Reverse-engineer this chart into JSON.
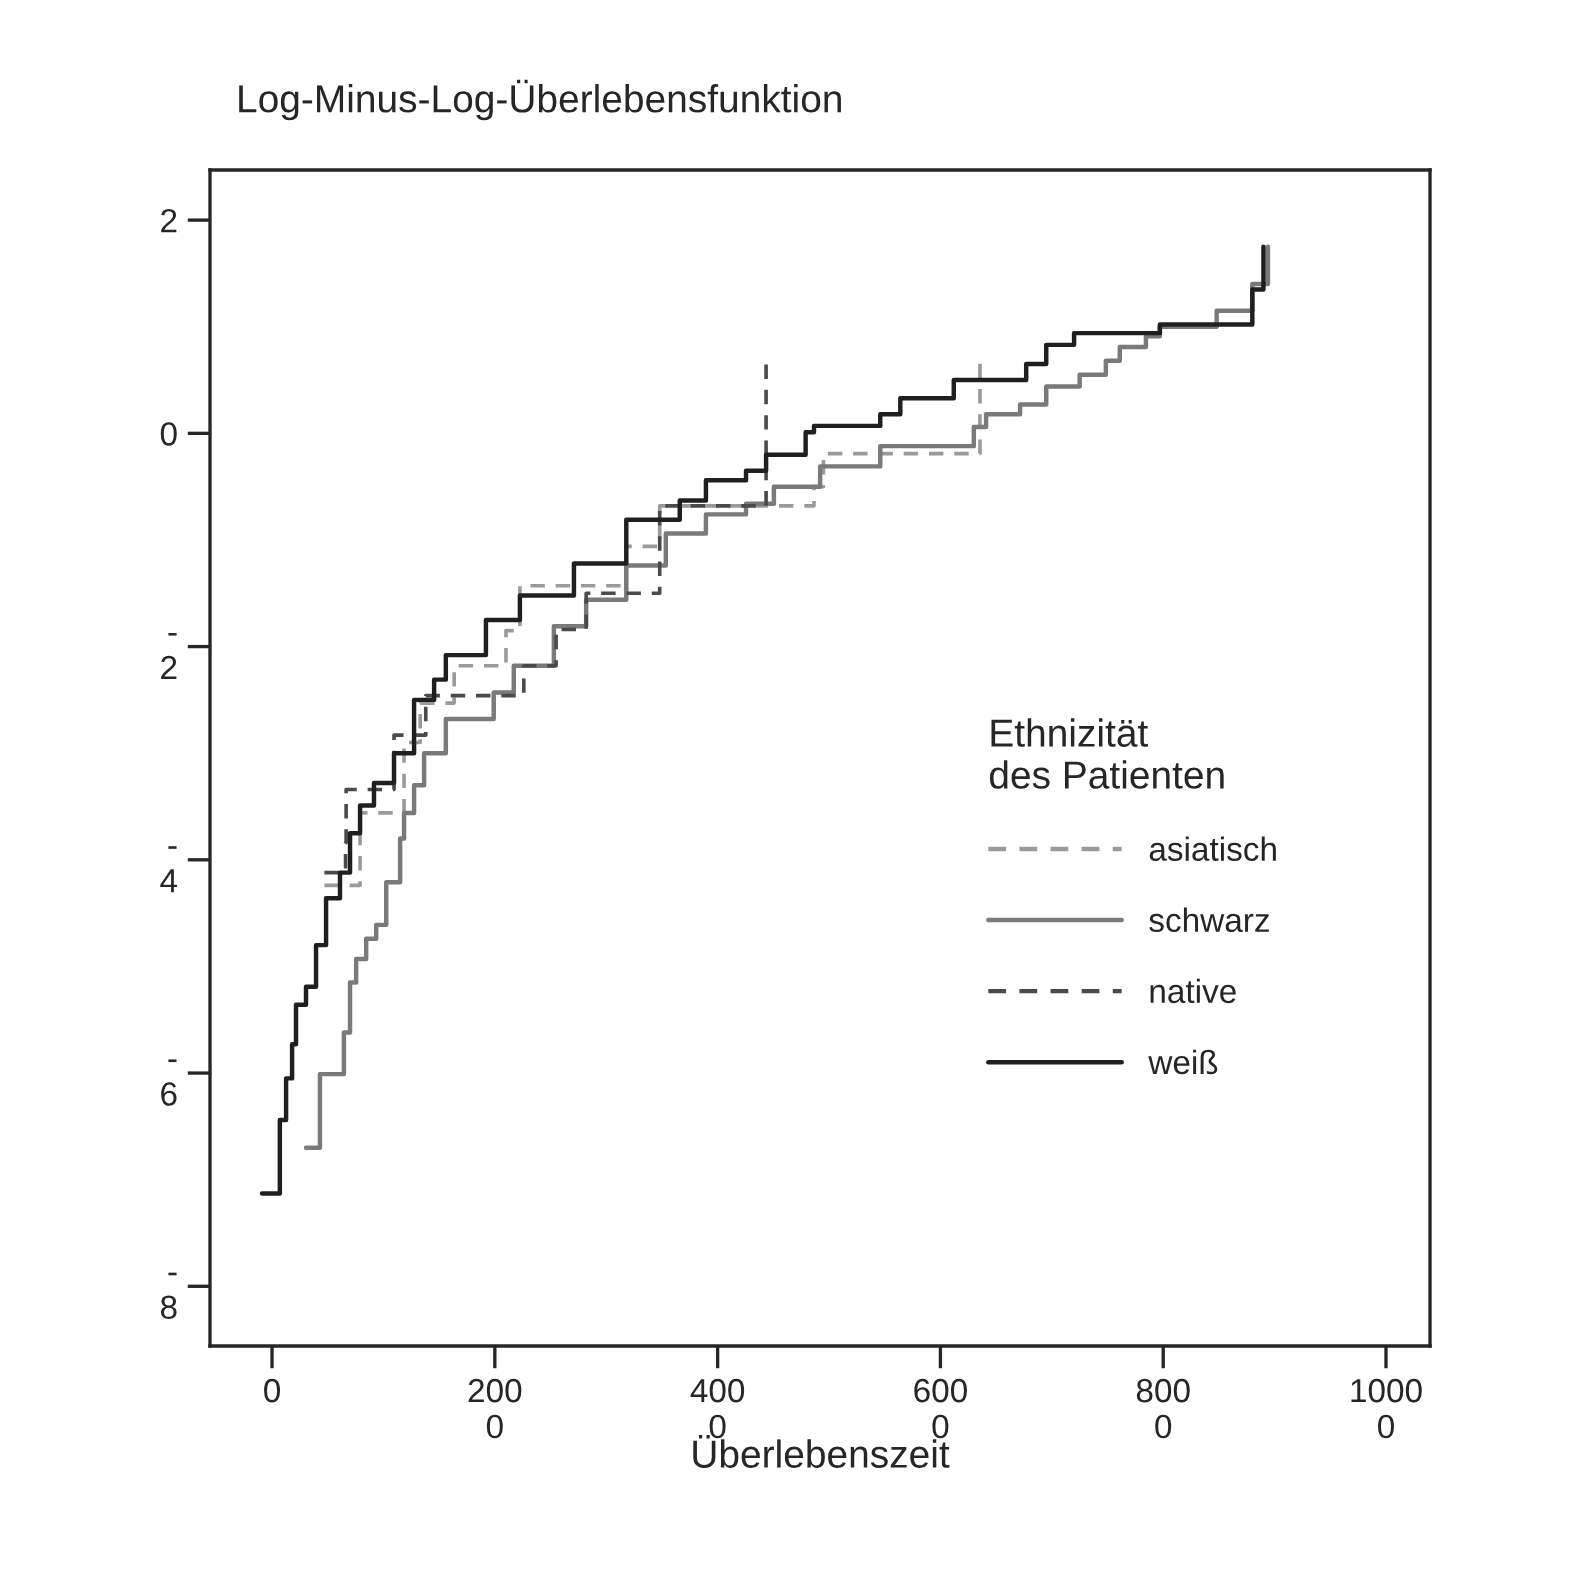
{
  "chart_data": {
    "type": "line",
    "title": "Log-Minus-Log-Überlebensfunktion",
    "xlabel": "Überlebenszeit",
    "legend_title": "Ethnizität\ndes Patienten",
    "legend": "lower right",
    "grid": false,
    "marker": "none",
    "xlim": [
      -557,
      10395
    ],
    "ylim": [
      -8.56,
      2.47
    ],
    "xticks": [
      0,
      2000,
      4000,
      6000,
      8000,
      10000
    ],
    "yticks": [
      2,
      0,
      -2,
      -4,
      -6,
      -8
    ],
    "series": [
      {
        "name": "asiatisch",
        "color": "#9a9a9a",
        "line_style": "dashed",
        "x": [
          470,
          790,
          790,
          1185,
          1185,
          1330,
          1330,
          1635,
          1635,
          2100,
          2100,
          2225,
          2225,
          3180,
          3180,
          3480,
          3480,
          4865,
          4865,
          4950,
          4950,
          6355,
          6355
        ],
        "values": [
          -4.24,
          -4.24,
          -3.56,
          -3.56,
          -2.9,
          -2.9,
          -2.53,
          -2.53,
          -2.18,
          -2.18,
          -1.85,
          -1.85,
          -1.43,
          -1.43,
          -1.06,
          -1.06,
          -0.68,
          -0.68,
          -0.5,
          -0.5,
          -0.19,
          -0.19,
          0.72
        ]
      },
      {
        "name": "schwarz",
        "color": "#7a7a7a",
        "line_style": "solid",
        "x": [
          305,
          430,
          430,
          645,
          645,
          700,
          700,
          755,
          755,
          845,
          845,
          935,
          935,
          1025,
          1025,
          1150,
          1150,
          1185,
          1185,
          1275,
          1275,
          1365,
          1365,
          1560,
          1560,
          1990,
          1990,
          2170,
          2170,
          2530,
          2530,
          2820,
          2820,
          3180,
          3180,
          3535,
          3535,
          3895,
          3895,
          4255,
          4255,
          4505,
          4505,
          4920,
          4920,
          5460,
          5460,
          6300,
          6300,
          6410,
          6410,
          6715,
          6715,
          6950,
          6950,
          7250,
          7250,
          7485,
          7485,
          7610,
          7610,
          7845,
          7845,
          7970,
          7970,
          8480,
          8480,
          8800,
          8800,
          8940,
          8940
        ],
        "values": [
          -6.7,
          -6.7,
          -6.01,
          -6.01,
          -5.62,
          -5.62,
          -5.15,
          -5.15,
          -4.93,
          -4.93,
          -4.74,
          -4.74,
          -4.61,
          -4.61,
          -4.21,
          -4.21,
          -3.8,
          -3.8,
          -3.56,
          -3.56,
          -3.3,
          -3.3,
          -3.0,
          -3.0,
          -2.68,
          -2.68,
          -2.43,
          -2.43,
          -2.18,
          -2.18,
          -1.81,
          -1.81,
          -1.56,
          -1.56,
          -1.24,
          -1.24,
          -0.94,
          -0.94,
          -0.76,
          -0.76,
          -0.66,
          -0.66,
          -0.5,
          -0.5,
          -0.31,
          -0.31,
          -0.12,
          -0.12,
          0.06,
          0.06,
          0.18,
          0.18,
          0.27,
          0.27,
          0.44,
          0.44,
          0.55,
          0.55,
          0.68,
          0.68,
          0.81,
          0.81,
          0.91,
          0.91,
          1.0,
          1.0,
          1.15,
          1.15,
          1.4,
          1.4,
          1.75
        ]
      },
      {
        "name": "native",
        "color": "#4a4a4a",
        "line_style": "dashed",
        "x": [
          470,
          660,
          660,
          665,
          665,
          1095,
          1095,
          1380,
          1380,
          2260,
          2260,
          2550,
          2550,
          2820,
          2820,
          3480,
          3480,
          4435,
          4435
        ],
        "values": [
          -4.12,
          -4.12,
          -3.84,
          -3.84,
          -3.34,
          -3.34,
          -2.83,
          -2.83,
          -2.46,
          -2.46,
          -2.18,
          -2.18,
          -1.84,
          -1.84,
          -1.5,
          -1.5,
          -0.68,
          -0.68,
          0.65
        ]
      },
      {
        "name": "weiß",
        "color": "#1f1f1f",
        "line_style": "solid",
        "x": [
          -90,
          70,
          70,
          126,
          126,
          180,
          180,
          215,
          215,
          305,
          305,
          395,
          395,
          485,
          485,
          610,
          610,
          700,
          700,
          790,
          790,
          915,
          915,
          1095,
          1095,
          1275,
          1275,
          1455,
          1455,
          1560,
          1560,
          1920,
          1920,
          2225,
          2225,
          2710,
          2710,
          3180,
          3180,
          3660,
          3660,
          3895,
          3895,
          4255,
          4255,
          4435,
          4435,
          4790,
          4790,
          4865,
          4865,
          5460,
          5460,
          5640,
          5640,
          6120,
          6120,
          6770,
          6770,
          6950,
          6950,
          7200,
          7200,
          7970,
          7970,
          8800,
          8800,
          8900,
          8900
        ],
        "values": [
          -7.13,
          -7.13,
          -6.44,
          -6.44,
          -6.05,
          -6.05,
          -5.73,
          -5.73,
          -5.36,
          -5.36,
          -5.19,
          -5.19,
          -4.8,
          -4.8,
          -4.36,
          -4.36,
          -4.12,
          -4.12,
          -3.75,
          -3.75,
          -3.49,
          -3.49,
          -3.28,
          -3.28,
          -3.0,
          -3.0,
          -2.5,
          -2.5,
          -2.31,
          -2.31,
          -2.08,
          -2.08,
          -1.75,
          -1.75,
          -1.52,
          -1.52,
          -1.22,
          -1.22,
          -0.81,
          -0.81,
          -0.63,
          -0.63,
          -0.44,
          -0.44,
          -0.35,
          -0.35,
          -0.2,
          -0.2,
          0.01,
          0.01,
          0.07,
          0.07,
          0.18,
          0.18,
          0.33,
          0.33,
          0.5,
          0.5,
          0.65,
          0.65,
          0.83,
          0.83,
          0.94,
          0.94,
          1.02,
          1.02,
          1.35,
          1.35,
          1.75
        ]
      }
    ]
  }
}
